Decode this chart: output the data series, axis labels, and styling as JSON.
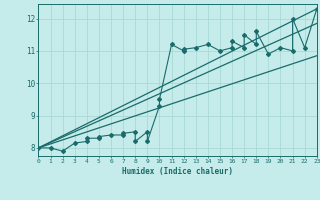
{
  "xlabel": "Humidex (Indice chaleur)",
  "bg_color": "#c5ecea",
  "grid_color": "#a8d8d5",
  "line_color": "#1a6b6b",
  "xlim": [
    0,
    23
  ],
  "ylim": [
    7.75,
    12.45
  ],
  "xticks": [
    0,
    1,
    2,
    3,
    4,
    5,
    6,
    7,
    8,
    9,
    10,
    11,
    12,
    13,
    14,
    15,
    16,
    17,
    18,
    19,
    20,
    21,
    22,
    23
  ],
  "yticks": [
    8,
    9,
    10,
    11,
    12
  ],
  "scatter_x": [
    0,
    1,
    2,
    3,
    4,
    4,
    5,
    5,
    6,
    7,
    7,
    8,
    8,
    9,
    9,
    10,
    10,
    11,
    12,
    12,
    13,
    14,
    15,
    16,
    16,
    17,
    17,
    18,
    18,
    19,
    20,
    21,
    21,
    22,
    23
  ],
  "scatter_y": [
    8.0,
    8.0,
    7.9,
    8.15,
    8.2,
    8.3,
    8.3,
    8.35,
    8.4,
    8.4,
    8.45,
    8.5,
    8.2,
    8.5,
    8.2,
    9.3,
    9.5,
    11.2,
    11.0,
    11.05,
    11.1,
    11.2,
    11.0,
    11.1,
    11.3,
    11.1,
    11.5,
    11.2,
    11.6,
    10.9,
    11.1,
    11.0,
    12.0,
    11.1,
    12.3
  ],
  "line1_x": [
    0,
    23
  ],
  "line1_y": [
    8.0,
    12.3
  ],
  "line2_x": [
    0,
    23
  ],
  "line2_y": [
    8.0,
    11.85
  ],
  "line3_x": [
    0,
    23
  ],
  "line3_y": [
    8.0,
    10.85
  ]
}
